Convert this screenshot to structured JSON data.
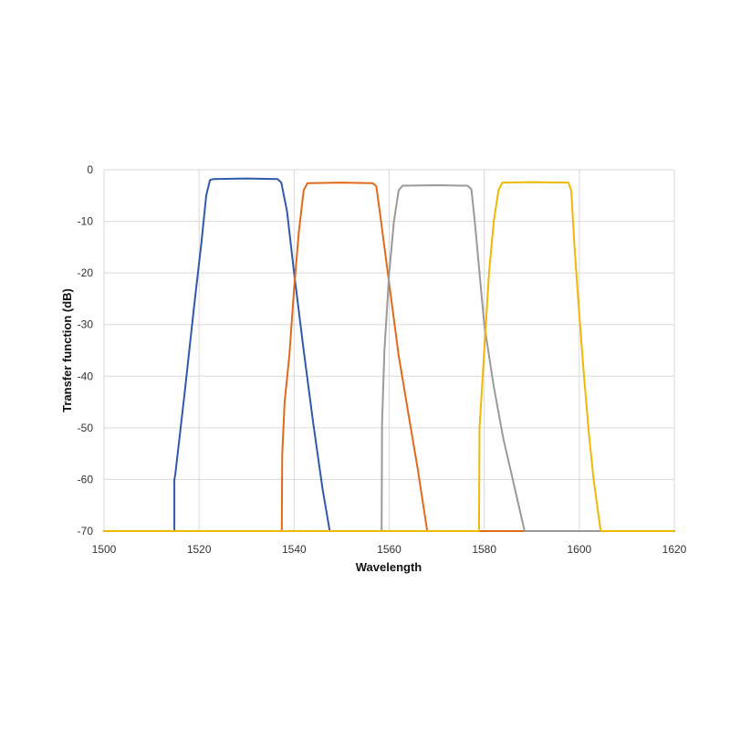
{
  "chart_data": {
    "type": "line",
    "title": "",
    "xlabel": "Wavelength",
    "ylabel": "Transfer function (dB)",
    "xlim": [
      1500,
      1620
    ],
    "ylim": [
      -70,
      0
    ],
    "xticks": [
      1500,
      1520,
      1540,
      1560,
      1580,
      1600,
      1620
    ],
    "yticks": [
      0,
      -10,
      -20,
      -30,
      -40,
      -50,
      -60,
      -70
    ],
    "grid": true,
    "legend": "none",
    "series": [
      {
        "color": "#2E5AAC",
        "x": [
          1500,
          1514.8,
          1514.8,
          1515,
          1517,
          1519,
          1520.5,
          1521.5,
          1522.3,
          1523,
          1530,
          1536.5,
          1537.3,
          1538.5,
          1540,
          1542,
          1544,
          1546,
          1547.5,
          1620
        ],
        "y": [
          -70,
          -70,
          -60,
          -59,
          -43,
          -26,
          -14,
          -5,
          -2,
          -1.8,
          -1.7,
          -1.8,
          -2.5,
          -8,
          -20,
          -35,
          -49,
          -62,
          -70,
          -70
        ]
      },
      {
        "color": "#E06A1A",
        "x": [
          1500,
          1537.4,
          1537.5,
          1538,
          1539,
          1540,
          1541,
          1542,
          1542.8,
          1550,
          1556.5,
          1557.3,
          1558,
          1559,
          1560,
          1562,
          1564,
          1566,
          1568,
          1620
        ],
        "y": [
          -70,
          -70,
          -55,
          -45,
          -36,
          -23,
          -12,
          -4,
          -2.6,
          -2.5,
          -2.6,
          -3.2,
          -8,
          -15,
          -22,
          -36,
          -47,
          -58,
          -70,
          -70
        ]
      },
      {
        "color": "#9A9A9A",
        "x": [
          1500,
          1558.4,
          1558.5,
          1559,
          1560,
          1561,
          1562,
          1562.8,
          1570,
          1576.5,
          1577.3,
          1578,
          1579,
          1580,
          1582,
          1584,
          1586,
          1588.5,
          1620
        ],
        "y": [
          -70,
          -70,
          -49,
          -35,
          -20,
          -10,
          -4,
          -3.1,
          -3,
          -3.1,
          -3.8,
          -10,
          -20,
          -30,
          -42,
          -52,
          -60,
          -70,
          -70
        ]
      },
      {
        "color": "#F0B800",
        "x": [
          1500,
          1578.9,
          1579,
          1580,
          1581,
          1582,
          1583,
          1583.8,
          1590,
          1597.7,
          1598.3,
          1599,
          1600,
          1601,
          1602,
          1603,
          1604.5,
          1620
        ],
        "y": [
          -70,
          -70,
          -50,
          -35,
          -20,
          -10,
          -4,
          -2.5,
          -2.4,
          -2.5,
          -4,
          -15,
          -28,
          -40,
          -51,
          -60,
          -70,
          -70
        ]
      }
    ]
  }
}
